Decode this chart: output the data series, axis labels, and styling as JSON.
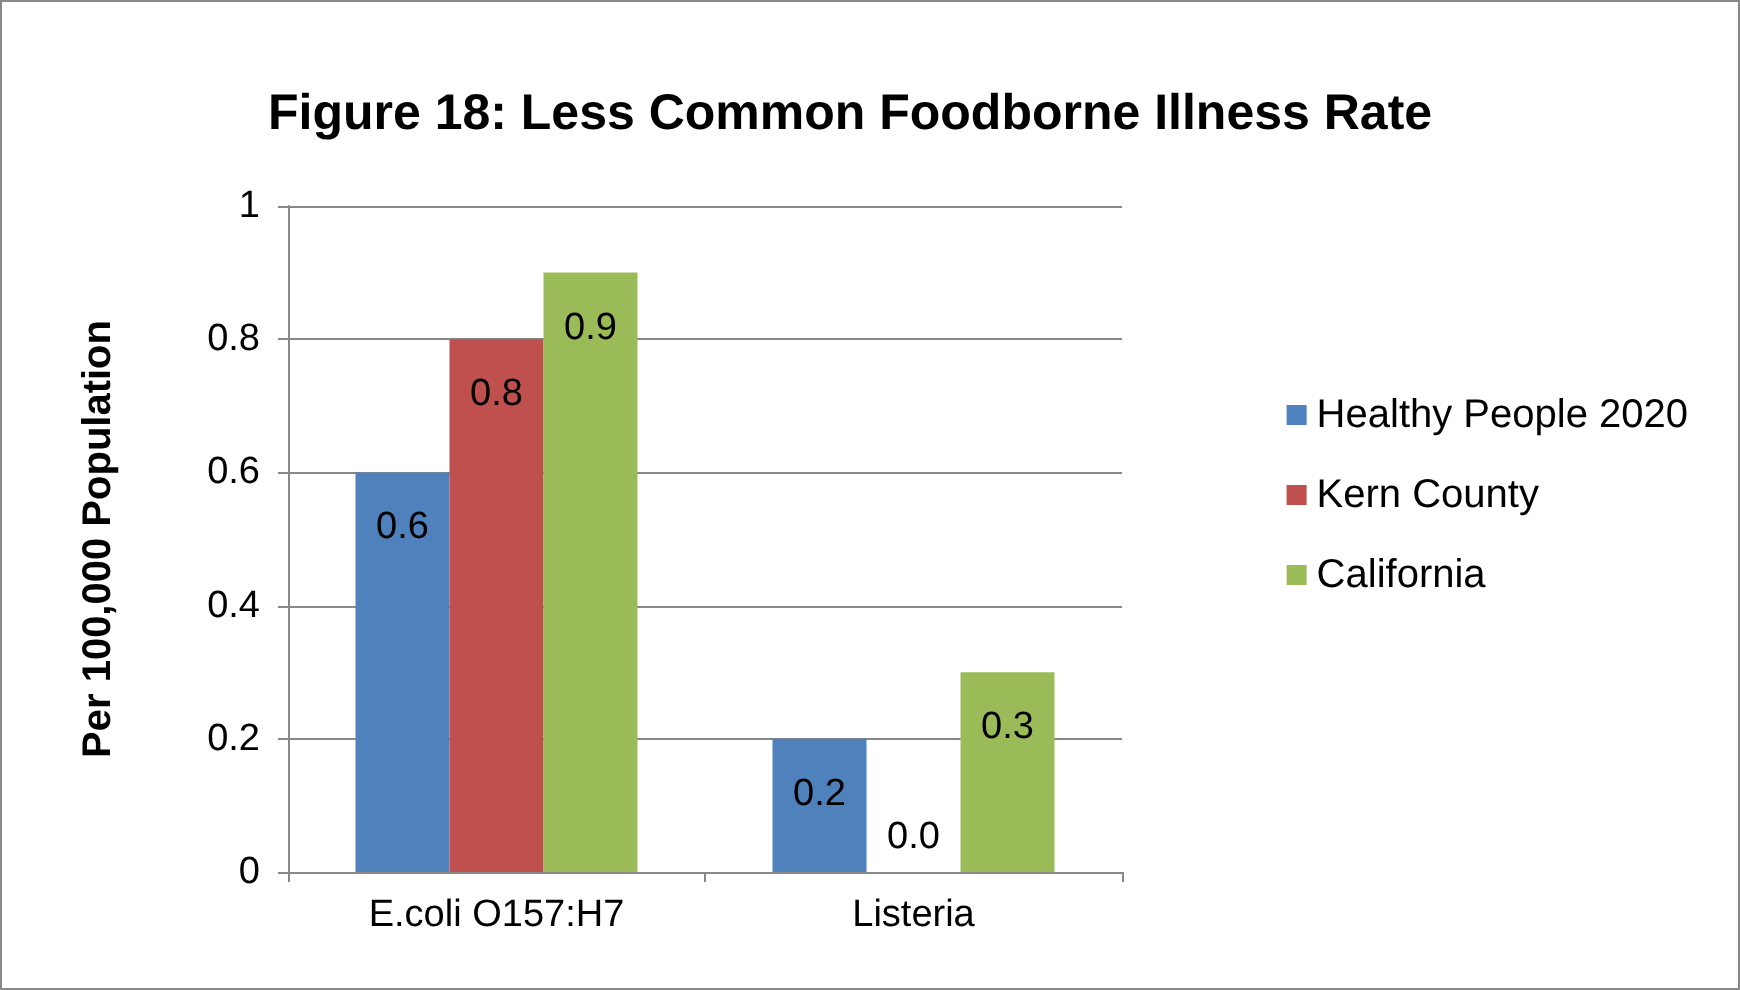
{
  "chart_data": {
    "type": "bar",
    "title": "Figure 18: Less Common Foodborne Illness Rate",
    "ylabel": "Per 100,000 Population",
    "categories": [
      "E.coli O157:H7",
      "Listeria"
    ],
    "series": [
      {
        "name": "Healthy People 2020",
        "color": "#4f81bd",
        "values": [
          0.6,
          0.2
        ],
        "value_labels": [
          "0.6",
          "0.2"
        ]
      },
      {
        "name": "Kern County",
        "color": "#c0504d",
        "values": [
          0.8,
          0.0
        ],
        "value_labels": [
          "0.8",
          "0.0"
        ]
      },
      {
        "name": "California",
        "color": "#9bbb59",
        "values": [
          0.9,
          0.3
        ],
        "value_labels": [
          "0.9",
          "0.3"
        ]
      }
    ],
    "ylim": [
      0,
      1
    ],
    "yticks": [
      0,
      0.2,
      0.4,
      0.6,
      0.8,
      1
    ],
    "grid": "y",
    "legend": "right"
  }
}
